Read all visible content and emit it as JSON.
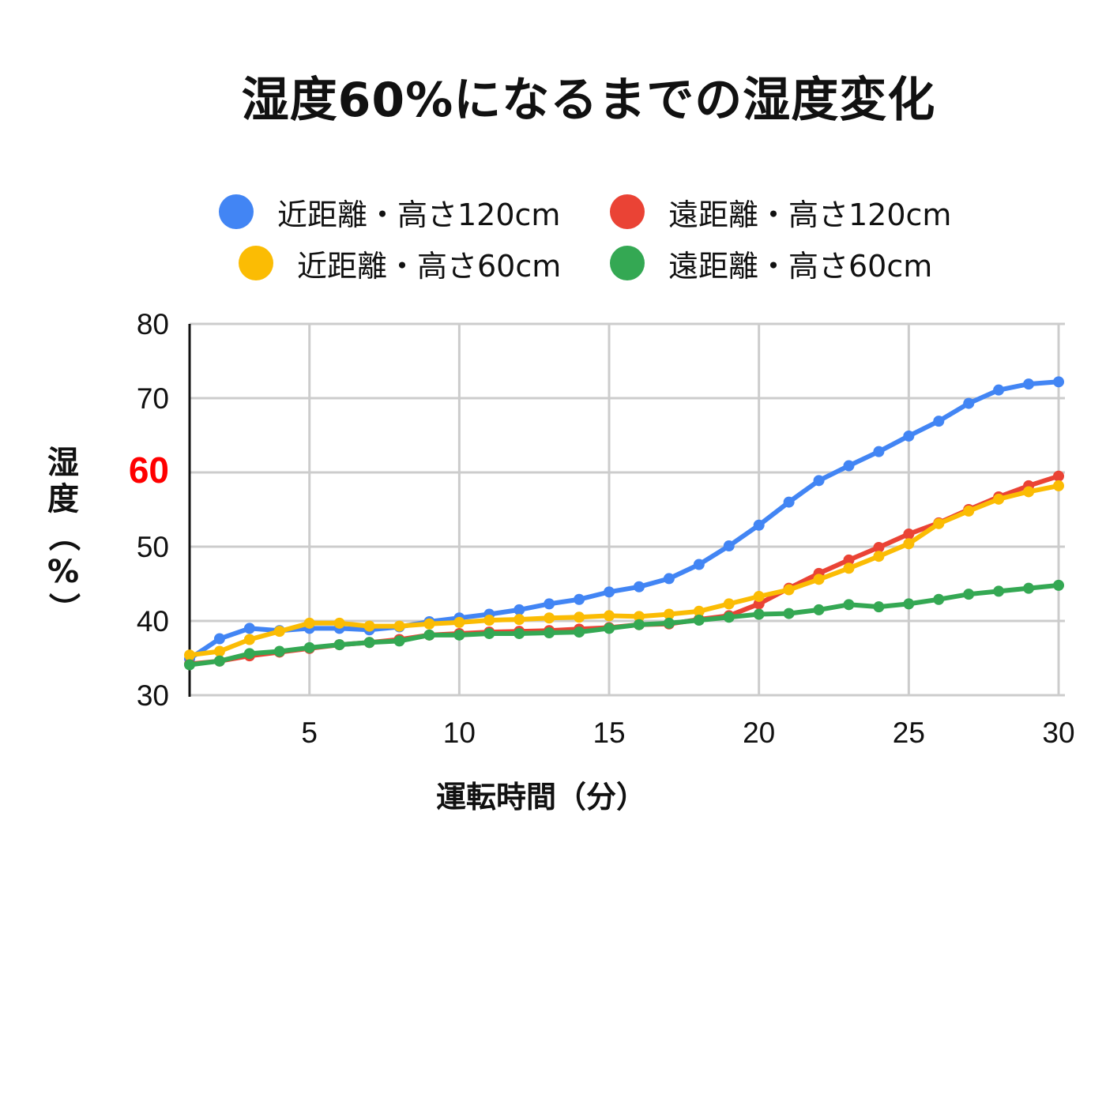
{
  "chart_data": {
    "type": "line",
    "title": "湿度60%になるまでの湿度変化",
    "xlabel": "運転時間（分）",
    "ylabel_chars": [
      "湿",
      "度",
      "（",
      "%",
      "）"
    ],
    "xlim": [
      1,
      30
    ],
    "ylim": [
      30,
      80
    ],
    "x_ticks": [
      5,
      10,
      15,
      20,
      25,
      30
    ],
    "y_ticks": [
      {
        "value": 30,
        "label": "30",
        "highlight": false
      },
      {
        "value": 40,
        "label": "40",
        "highlight": false
      },
      {
        "value": 50,
        "label": "50",
        "highlight": false
      },
      {
        "value": 60,
        "label": "60",
        "highlight": true
      },
      {
        "value": 70,
        "label": "70",
        "highlight": false
      },
      {
        "value": 80,
        "label": "80",
        "highlight": false
      }
    ],
    "highlight_color": "#ff0000",
    "grid": true,
    "legend_position": "top",
    "x": [
      1,
      2,
      3,
      4,
      5,
      6,
      7,
      8,
      9,
      10,
      11,
      12,
      13,
      14,
      15,
      16,
      17,
      18,
      19,
      20,
      21,
      22,
      23,
      24,
      25,
      26,
      27,
      28,
      29,
      30
    ],
    "series": [
      {
        "name": "近距離・高さ120cm",
        "color": "#4285f4",
        "values": [
          34.9,
          37.6,
          39.0,
          38.7,
          39.0,
          39.0,
          38.8,
          39.2,
          39.9,
          40.4,
          40.9,
          41.5,
          42.3,
          42.9,
          43.9,
          44.6,
          45.7,
          47.6,
          50.1,
          52.9,
          56.0,
          58.9,
          60.9,
          62.8,
          64.9,
          66.9,
          69.3,
          71.1,
          71.9,
          72.2
        ]
      },
      {
        "name": "遠距離・高さ120cm",
        "color": "#ea4335",
        "values": [
          34.2,
          34.6,
          35.3,
          35.8,
          36.3,
          36.8,
          37.1,
          37.5,
          38.1,
          38.3,
          38.5,
          38.6,
          38.7,
          38.9,
          39.1,
          39.5,
          39.6,
          40.2,
          40.7,
          42.3,
          44.4,
          46.4,
          48.2,
          49.9,
          51.7,
          53.2,
          55.0,
          56.7,
          58.2,
          59.5
        ]
      },
      {
        "name": "近距離・高さ60cm",
        "color": "#fbbc04",
        "values": [
          35.4,
          35.9,
          37.5,
          38.6,
          39.7,
          39.7,
          39.3,
          39.3,
          39.6,
          39.8,
          40.1,
          40.2,
          40.4,
          40.5,
          40.7,
          40.6,
          40.9,
          41.3,
          42.3,
          43.3,
          44.2,
          45.6,
          47.1,
          48.7,
          50.4,
          53.1,
          54.8,
          56.4,
          57.4,
          58.2
        ]
      },
      {
        "name": "遠距離・高さ60cm",
        "color": "#34a853",
        "values": [
          34.1,
          34.6,
          35.6,
          35.9,
          36.4,
          36.8,
          37.1,
          37.3,
          38.1,
          38.1,
          38.3,
          38.3,
          38.4,
          38.5,
          39.0,
          39.5,
          39.7,
          40.1,
          40.5,
          40.9,
          41.0,
          41.5,
          42.2,
          41.9,
          42.3,
          42.9,
          43.6,
          44.0,
          44.4,
          44.8
        ]
      }
    ]
  },
  "legend_order": [
    0,
    1,
    2,
    3
  ]
}
